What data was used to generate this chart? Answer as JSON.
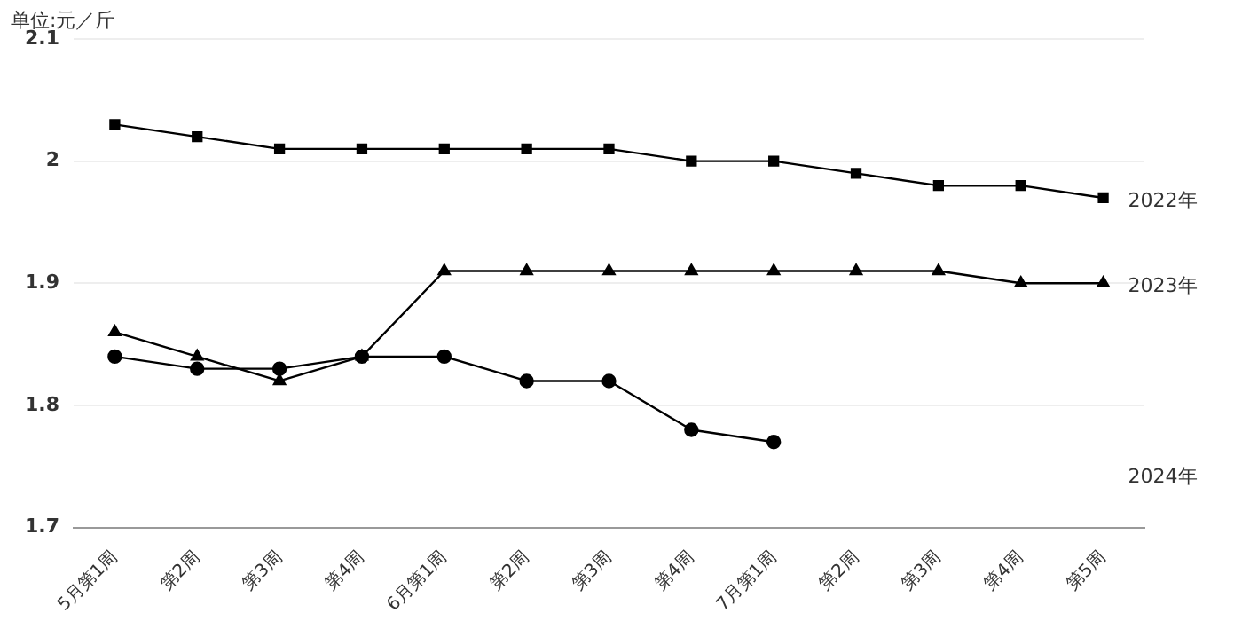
{
  "chart_data": {
    "type": "line",
    "ylabel": "单位:元／斤",
    "categories": [
      "5月第1周",
      "第2周",
      "第3周",
      "第4周",
      "6月第1周",
      "第2周",
      "第3周",
      "第4周",
      "7月第1周",
      "第2周",
      "第3周",
      "第4周",
      "第5周"
    ],
    "ylim": [
      1.7,
      2.1
    ],
    "yticks": [
      1.7,
      1.8,
      1.9,
      2,
      2.1
    ],
    "grid": "y",
    "legend": false,
    "line_style": "solid",
    "series": [
      {
        "name": "2022年",
        "color": "#000000",
        "marker": "square",
        "values": [
          2.03,
          2.02,
          2.01,
          2.01,
          2.01,
          2.01,
          2.01,
          2.0,
          2.0,
          1.99,
          1.98,
          1.98,
          1.97
        ]
      },
      {
        "name": "2023年",
        "color": "#000000",
        "marker": "triangle",
        "values": [
          1.86,
          1.84,
          1.82,
          1.84,
          1.91,
          1.91,
          1.91,
          1.91,
          1.91,
          1.91,
          1.91,
          1.9,
          1.9
        ]
      },
      {
        "name": "2024年",
        "color": "#000000",
        "marker": "circle",
        "values": [
          1.84,
          1.83,
          1.83,
          1.84,
          1.84,
          1.82,
          1.82,
          1.78,
          1.77,
          null,
          null,
          null,
          null
        ]
      }
    ]
  }
}
